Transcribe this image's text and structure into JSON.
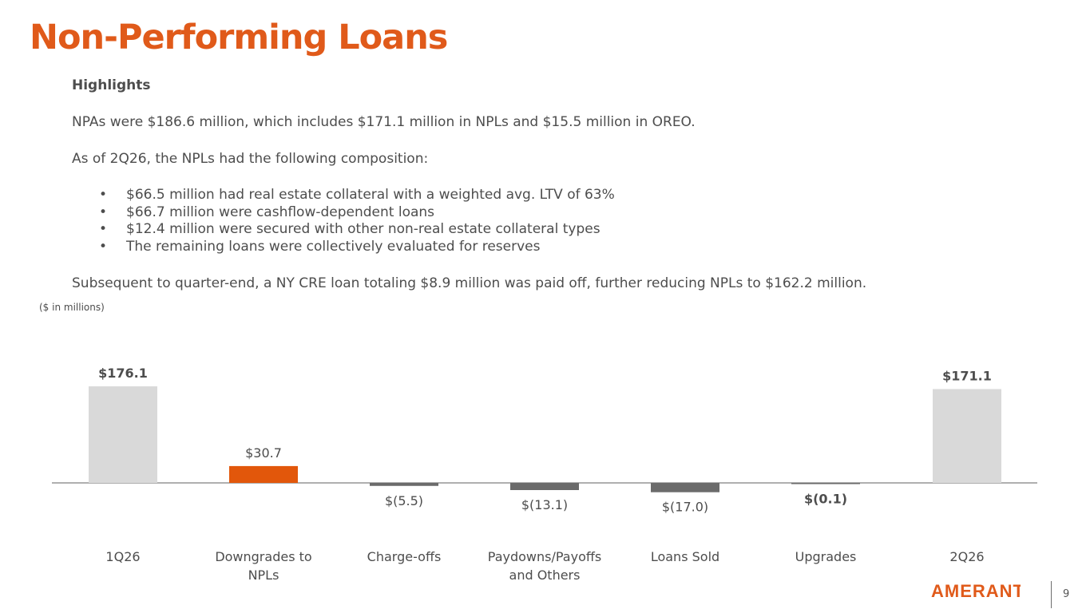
{
  "title": "Non-Performing Loans",
  "highlights": {
    "heading": "Highlights",
    "p1": "NPAs were $186.6 million, which includes $171.1 million in NPLs and $15.5 million in OREO.",
    "p2": "As of 2Q26, the NPLs had the following composition:",
    "bullets": [
      "$66.5 million had real estate collateral with a weighted avg. LTV of 63%",
      "$66.7 million were cashflow-dependent loans",
      "$12.4 million were secured with other non-real estate collateral types",
      "The remaining loans were collectively evaluated for reserves"
    ],
    "p3": "Subsequent to quarter-end, a NY CRE loan totaling $8.9 million was paid off, further reducing NPLs to $162.2 million."
  },
  "units_note": "($ in millions)",
  "chart_data": {
    "type": "bar",
    "categories": [
      "1Q26",
      "Downgrades to NPLs",
      "Charge-offs",
      "Paydowns/Payoffs and Others",
      "Loans Sold",
      "Upgrades",
      "2Q26"
    ],
    "category_lines": [
      [
        "1Q26"
      ],
      [
        "Downgrades to",
        "NPLs"
      ],
      [
        "Charge-offs"
      ],
      [
        "Paydowns/Payoffs",
        "and Others"
      ],
      [
        "Loans Sold"
      ],
      [
        "Upgrades"
      ],
      [
        "2Q26"
      ]
    ],
    "values": [
      176.1,
      30.7,
      -5.5,
      -13.1,
      -17.0,
      -0.1,
      171.1
    ],
    "labels": [
      "$176.1",
      "$30.7",
      "$(5.5)",
      "$(13.1)",
      "$(17.0)",
      "$(0.1)",
      "$171.1"
    ],
    "bold_labels": [
      true,
      false,
      false,
      false,
      false,
      true,
      true
    ],
    "colors": [
      "#d9d9d9",
      "#e2570b",
      "#6b6b6b",
      "#6b6b6b",
      "#6b6b6b",
      "#6b6b6b",
      "#d9d9d9"
    ],
    "title": "",
    "xlabel": "",
    "ylabel": "",
    "grid": false
  },
  "logo_text": "AMERANT",
  "page_number": "9"
}
